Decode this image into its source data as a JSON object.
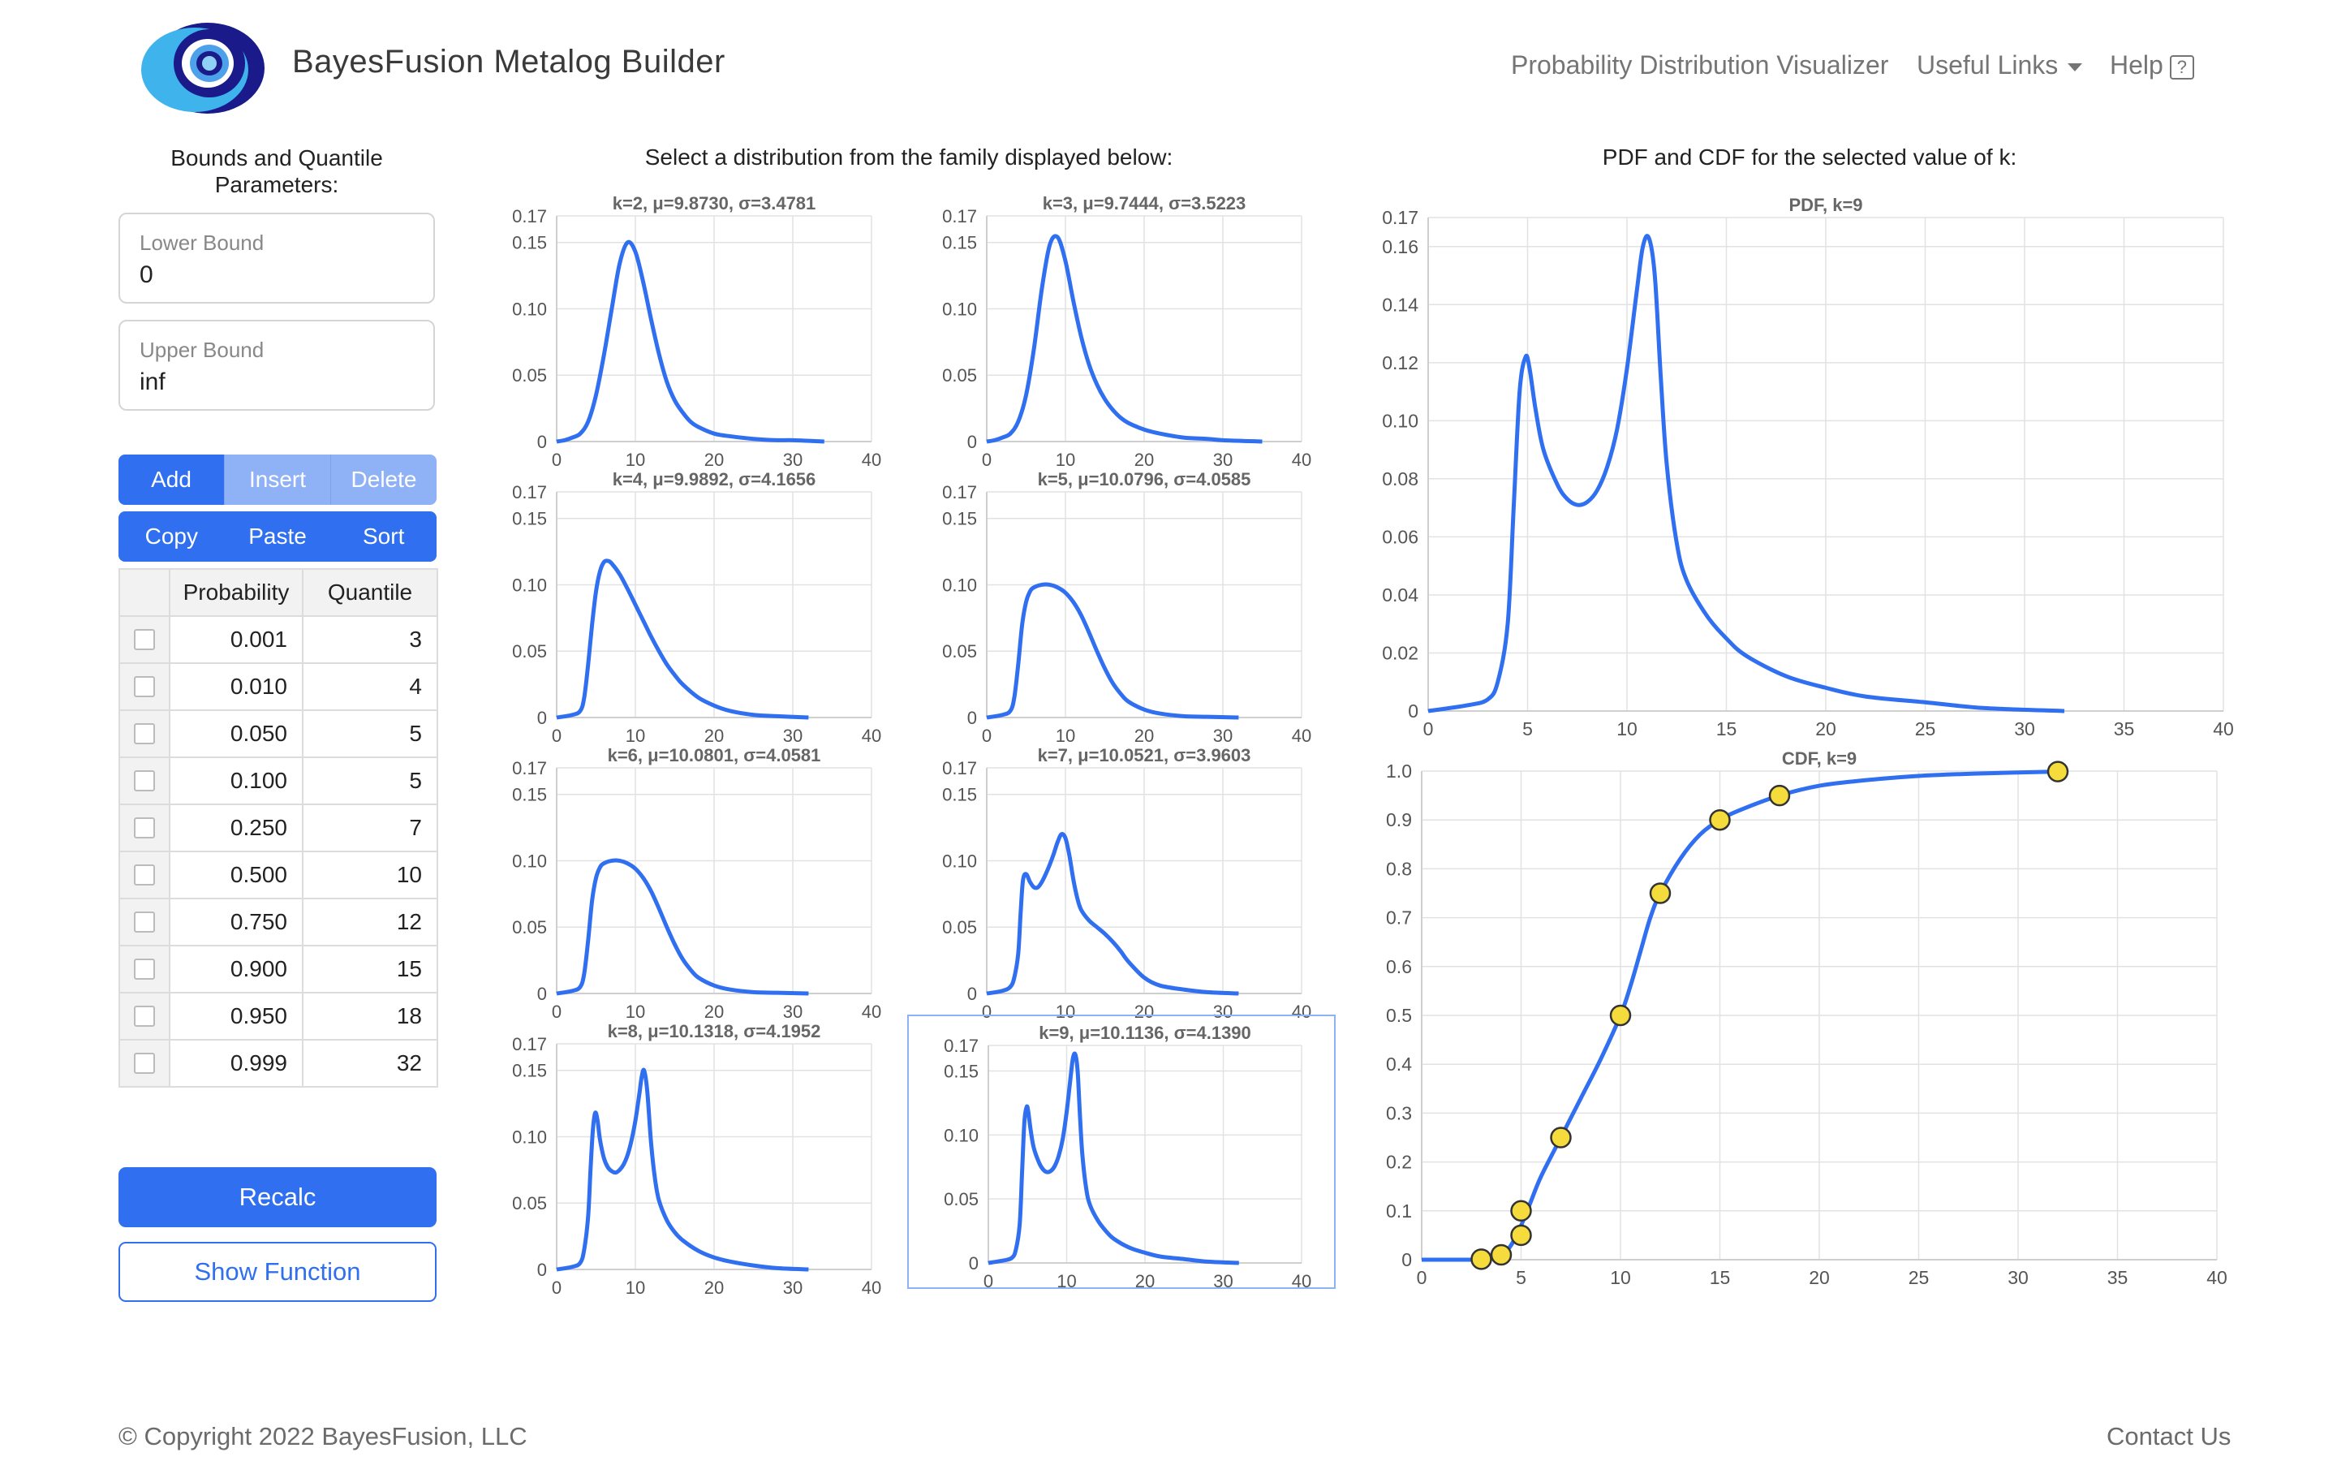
{
  "header": {
    "app_title": "BayesFusion Metalog Builder",
    "nav": {
      "visualizer": "Probability Distribution Visualizer",
      "useful_links": "Useful Links",
      "help": "Help",
      "help_icon": "?"
    }
  },
  "left_panel": {
    "heading": "Bounds and Quantile Parameters:",
    "lower_bound": {
      "label": "Lower Bound",
      "value": "0"
    },
    "upper_bound": {
      "label": "Upper Bound",
      "value": "inf"
    },
    "row1_buttons": [
      "Add",
      "Insert",
      "Delete"
    ],
    "row2_buttons": [
      "Copy",
      "Paste",
      "Sort"
    ],
    "table": {
      "headers": [
        "Probability",
        "Quantile"
      ],
      "rows": [
        [
          "0.001",
          "3"
        ],
        [
          "0.010",
          "4"
        ],
        [
          "0.050",
          "5"
        ],
        [
          "0.100",
          "5"
        ],
        [
          "0.250",
          "7"
        ],
        [
          "0.500",
          "10"
        ],
        [
          "0.750",
          "12"
        ],
        [
          "0.900",
          "15"
        ],
        [
          "0.950",
          "18"
        ],
        [
          "0.999",
          "32"
        ]
      ]
    },
    "recalc_label": "Recalc",
    "show_function_label": "Show Function"
  },
  "middle": {
    "heading": "Select a distribution from the family displayed below:"
  },
  "right": {
    "heading": "PDF and CDF for the selected value of k:"
  },
  "colors": {
    "accent": "#2f6ff0",
    "accent_light": "#8fb1f6",
    "curve": "#2f6ff0",
    "marker": "#f5dc3c"
  },
  "footer": {
    "copyright": "© Copyright 2022 BayesFusion, LLC",
    "contact": "Contact Us"
  },
  "chart_data": [
    {
      "type": "line",
      "title": "k=2, μ=9.8730, σ=3.4781",
      "xlim": [
        0,
        40
      ],
      "ylim": [
        0,
        0.17
      ],
      "xticks": [
        "0",
        "10",
        "20",
        "30",
        "40"
      ],
      "yticks": [
        "0",
        "0.05",
        "0.10",
        "0.15",
        "0.17"
      ],
      "x": [
        0,
        1,
        2,
        3,
        4,
        5,
        6,
        7,
        8,
        9,
        10,
        11,
        12,
        13,
        14,
        15,
        16,
        17,
        18,
        20,
        22,
        25,
        28,
        30,
        34
      ],
      "y": [
        0,
        0.001,
        0.003,
        0.006,
        0.015,
        0.035,
        0.065,
        0.1,
        0.134,
        0.15,
        0.143,
        0.12,
        0.092,
        0.066,
        0.045,
        0.031,
        0.022,
        0.015,
        0.011,
        0.006,
        0.004,
        0.002,
        0.001,
        0.001,
        0
      ]
    },
    {
      "type": "line",
      "title": "k=3, μ=9.7444, σ=3.5223",
      "xlim": [
        0,
        40
      ],
      "ylim": [
        0,
        0.17
      ],
      "xticks": [
        "0",
        "10",
        "20",
        "30",
        "40"
      ],
      "yticks": [
        "0",
        "0.05",
        "0.10",
        "0.15",
        "0.17"
      ],
      "x": [
        0,
        1,
        2,
        3,
        4,
        5,
        6,
        7,
        8,
        9,
        10,
        11,
        12,
        13,
        14,
        15,
        16,
        17,
        18,
        20,
        22,
        25,
        28,
        30,
        35
      ],
      "y": [
        0,
        0.001,
        0.003,
        0.006,
        0.015,
        0.035,
        0.07,
        0.115,
        0.148,
        0.154,
        0.136,
        0.106,
        0.079,
        0.058,
        0.043,
        0.032,
        0.024,
        0.018,
        0.014,
        0.009,
        0.006,
        0.003,
        0.002,
        0.001,
        0
      ]
    },
    {
      "type": "line",
      "title": "k=4, μ=9.9892, σ=4.1656",
      "xlim": [
        0,
        40
      ],
      "ylim": [
        0,
        0.17
      ],
      "xticks": [
        "0",
        "10",
        "20",
        "30",
        "40"
      ],
      "yticks": [
        "0",
        "0.05",
        "0.10",
        "0.15",
        "0.17"
      ],
      "x": [
        0,
        2,
        3,
        3.5,
        4,
        4.5,
        5,
        5.5,
        6,
        6.5,
        7,
        8,
        9,
        10,
        11,
        12,
        13,
        14,
        15,
        16,
        18,
        20,
        22,
        25,
        28,
        32
      ],
      "y": [
        0,
        0.002,
        0.005,
        0.015,
        0.04,
        0.07,
        0.095,
        0.11,
        0.117,
        0.118,
        0.116,
        0.108,
        0.097,
        0.085,
        0.073,
        0.061,
        0.05,
        0.04,
        0.032,
        0.025,
        0.015,
        0.009,
        0.005,
        0.002,
        0.001,
        0
      ]
    },
    {
      "type": "line",
      "title": "k=5, μ=10.0796, σ=4.0585",
      "xlim": [
        0,
        40
      ],
      "ylim": [
        0,
        0.17
      ],
      "xticks": [
        "0",
        "10",
        "20",
        "30",
        "40"
      ],
      "yticks": [
        "0",
        "0.05",
        "0.10",
        "0.15",
        "0.17"
      ],
      "x": [
        0,
        2,
        3,
        3.5,
        4,
        4.5,
        5,
        5.5,
        6,
        7,
        8,
        9,
        10,
        11,
        12,
        13,
        14,
        15,
        16,
        17,
        18,
        20,
        22,
        25,
        28,
        32
      ],
      "y": [
        0,
        0.002,
        0.005,
        0.015,
        0.04,
        0.07,
        0.087,
        0.095,
        0.098,
        0.1,
        0.1,
        0.098,
        0.094,
        0.087,
        0.077,
        0.064,
        0.05,
        0.037,
        0.026,
        0.018,
        0.012,
        0.006,
        0.003,
        0.001,
        0.0005,
        0
      ]
    },
    {
      "type": "line",
      "title": "k=6, μ=10.0801, σ=4.0581",
      "xlim": [
        0,
        40
      ],
      "ylim": [
        0,
        0.17
      ],
      "xticks": [
        "0",
        "10",
        "20",
        "30",
        "40"
      ],
      "yticks": [
        "0",
        "0.05",
        "0.10",
        "0.15",
        "0.17"
      ],
      "x": [
        0,
        2,
        3,
        3.5,
        4,
        4.5,
        5,
        5.5,
        6,
        7,
        8,
        9,
        10,
        11,
        12,
        13,
        14,
        15,
        16,
        17,
        18,
        20,
        22,
        25,
        28,
        32
      ],
      "y": [
        0,
        0.002,
        0.005,
        0.015,
        0.04,
        0.07,
        0.087,
        0.095,
        0.098,
        0.1,
        0.1,
        0.098,
        0.094,
        0.087,
        0.077,
        0.064,
        0.05,
        0.037,
        0.026,
        0.018,
        0.012,
        0.006,
        0.003,
        0.001,
        0.0005,
        0
      ]
    },
    {
      "type": "line",
      "title": "k=7, μ=10.0521, σ=3.9603",
      "xlim": [
        0,
        40
      ],
      "ylim": [
        0,
        0.17
      ],
      "xticks": [
        "0",
        "10",
        "20",
        "30",
        "40"
      ],
      "yticks": [
        "0",
        "0.05",
        "0.10",
        "0.15",
        "0.17"
      ],
      "x": [
        0,
        2,
        3,
        3.5,
        4,
        4.3,
        4.6,
        5,
        5.5,
        6,
        6.5,
        7,
        7.5,
        8,
        8.5,
        9,
        9.5,
        10,
        10.5,
        11,
        11.5,
        12,
        13,
        14,
        15,
        16,
        17,
        18,
        20,
        22,
        25,
        28,
        32
      ],
      "y": [
        0,
        0.002,
        0.005,
        0.012,
        0.03,
        0.06,
        0.085,
        0.09,
        0.084,
        0.08,
        0.08,
        0.084,
        0.09,
        0.097,
        0.105,
        0.114,
        0.12,
        0.117,
        0.104,
        0.086,
        0.072,
        0.063,
        0.055,
        0.05,
        0.045,
        0.039,
        0.032,
        0.024,
        0.012,
        0.006,
        0.003,
        0.001,
        0
      ]
    },
    {
      "type": "line",
      "title": "k=8, μ=10.1318, σ=4.1952",
      "xlim": [
        0,
        40
      ],
      "ylim": [
        0,
        0.17
      ],
      "xticks": [
        "0",
        "10",
        "20",
        "30",
        "40"
      ],
      "yticks": [
        "0",
        "0.05",
        "0.10",
        "0.15",
        "0.17"
      ],
      "x": [
        0,
        2,
        3,
        3.5,
        4,
        4.3,
        4.6,
        4.9,
        5.2,
        5.5,
        6,
        6.5,
        7,
        7.5,
        8,
        8.5,
        9,
        9.5,
        10,
        10.5,
        10.8,
        11.1,
        11.5,
        12,
        12.5,
        13,
        14,
        15,
        16,
        18,
        20,
        22,
        25,
        28,
        32
      ],
      "y": [
        0,
        0.002,
        0.005,
        0.015,
        0.04,
        0.075,
        0.105,
        0.118,
        0.112,
        0.098,
        0.084,
        0.077,
        0.074,
        0.073,
        0.075,
        0.079,
        0.086,
        0.097,
        0.112,
        0.132,
        0.145,
        0.15,
        0.135,
        0.095,
        0.068,
        0.052,
        0.037,
        0.028,
        0.022,
        0.014,
        0.009,
        0.006,
        0.003,
        0.001,
        0
      ]
    },
    {
      "type": "line",
      "title": "k=9, μ=10.1136, σ=4.1390",
      "xlim": [
        0,
        40
      ],
      "ylim": [
        0,
        0.17
      ],
      "xticks": [
        "0",
        "10",
        "20",
        "30",
        "40"
      ],
      "yticks": [
        "0",
        "0.05",
        "0.10",
        "0.15",
        "0.17"
      ],
      "x": [
        0,
        2,
        3,
        3.5,
        4,
        4.3,
        4.6,
        4.9,
        5.1,
        5.4,
        5.8,
        6.5,
        7,
        7.5,
        8,
        8.5,
        9,
        9.5,
        10,
        10.5,
        10.8,
        11.1,
        11.4,
        11.7,
        12,
        12.5,
        13,
        14,
        15,
        16,
        18,
        20,
        22,
        25,
        28,
        32
      ],
      "y": [
        0,
        0.002,
        0.004,
        0.01,
        0.03,
        0.07,
        0.11,
        0.122,
        0.118,
        0.104,
        0.09,
        0.078,
        0.073,
        0.071,
        0.072,
        0.076,
        0.084,
        0.097,
        0.118,
        0.145,
        0.16,
        0.163,
        0.15,
        0.115,
        0.085,
        0.058,
        0.045,
        0.033,
        0.025,
        0.019,
        0.012,
        0.008,
        0.005,
        0.003,
        0.001,
        0
      ]
    },
    {
      "type": "line",
      "title": "PDF, k=9",
      "xlim": [
        0,
        40
      ],
      "ylim": [
        0,
        0.17
      ],
      "xticks": [
        "0",
        "5",
        "10",
        "15",
        "20",
        "25",
        "30",
        "35",
        "40"
      ],
      "yticks": [
        "0",
        "0.02",
        "0.04",
        "0.06",
        "0.08",
        "0.10",
        "0.12",
        "0.14",
        "0.16",
        "0.17"
      ],
      "x": [
        0,
        2,
        3,
        3.5,
        4,
        4.3,
        4.6,
        4.9,
        5.1,
        5.4,
        5.8,
        6.5,
        7,
        7.5,
        8,
        8.5,
        9,
        9.5,
        10,
        10.5,
        10.8,
        11.1,
        11.4,
        11.7,
        12,
        12.5,
        13,
        14,
        15,
        16,
        18,
        20,
        22,
        25,
        28,
        32
      ],
      "y": [
        0,
        0.002,
        0.004,
        0.01,
        0.03,
        0.07,
        0.11,
        0.122,
        0.118,
        0.104,
        0.09,
        0.078,
        0.073,
        0.071,
        0.072,
        0.076,
        0.084,
        0.097,
        0.118,
        0.145,
        0.16,
        0.163,
        0.15,
        0.115,
        0.085,
        0.058,
        0.045,
        0.033,
        0.025,
        0.019,
        0.012,
        0.008,
        0.005,
        0.003,
        0.001,
        0
      ]
    },
    {
      "type": "line",
      "title": "CDF, k=9",
      "xlim": [
        0,
        40
      ],
      "ylim": [
        0,
        1.0
      ],
      "xticks": [
        "0",
        "5",
        "10",
        "15",
        "20",
        "25",
        "30",
        "35",
        "40"
      ],
      "yticks": [
        "0",
        "0.1",
        "0.2",
        "0.3",
        "0.4",
        "0.5",
        "0.6",
        "0.7",
        "0.8",
        "0.9",
        "1.0"
      ],
      "x": [
        0,
        2,
        3,
        4,
        4.5,
        5,
        5.5,
        6,
        7,
        8,
        9,
        10,
        10.5,
        11,
        11.5,
        12,
        13,
        14,
        15,
        16,
        18,
        20,
        22,
        25,
        28,
        32
      ],
      "y": [
        0,
        0,
        0.001,
        0.01,
        0.03,
        0.07,
        0.12,
        0.17,
        0.25,
        0.33,
        0.41,
        0.5,
        0.56,
        0.63,
        0.7,
        0.75,
        0.82,
        0.87,
        0.9,
        0.92,
        0.95,
        0.97,
        0.98,
        0.99,
        0.995,
        0.999
      ],
      "points": [
        [
          3,
          0.001
        ],
        [
          4,
          0.01
        ],
        [
          5,
          0.05
        ],
        [
          5,
          0.1
        ],
        [
          7,
          0.25
        ],
        [
          10,
          0.5
        ],
        [
          12,
          0.75
        ],
        [
          15,
          0.9
        ],
        [
          18,
          0.95
        ],
        [
          32,
          0.999
        ]
      ]
    }
  ]
}
